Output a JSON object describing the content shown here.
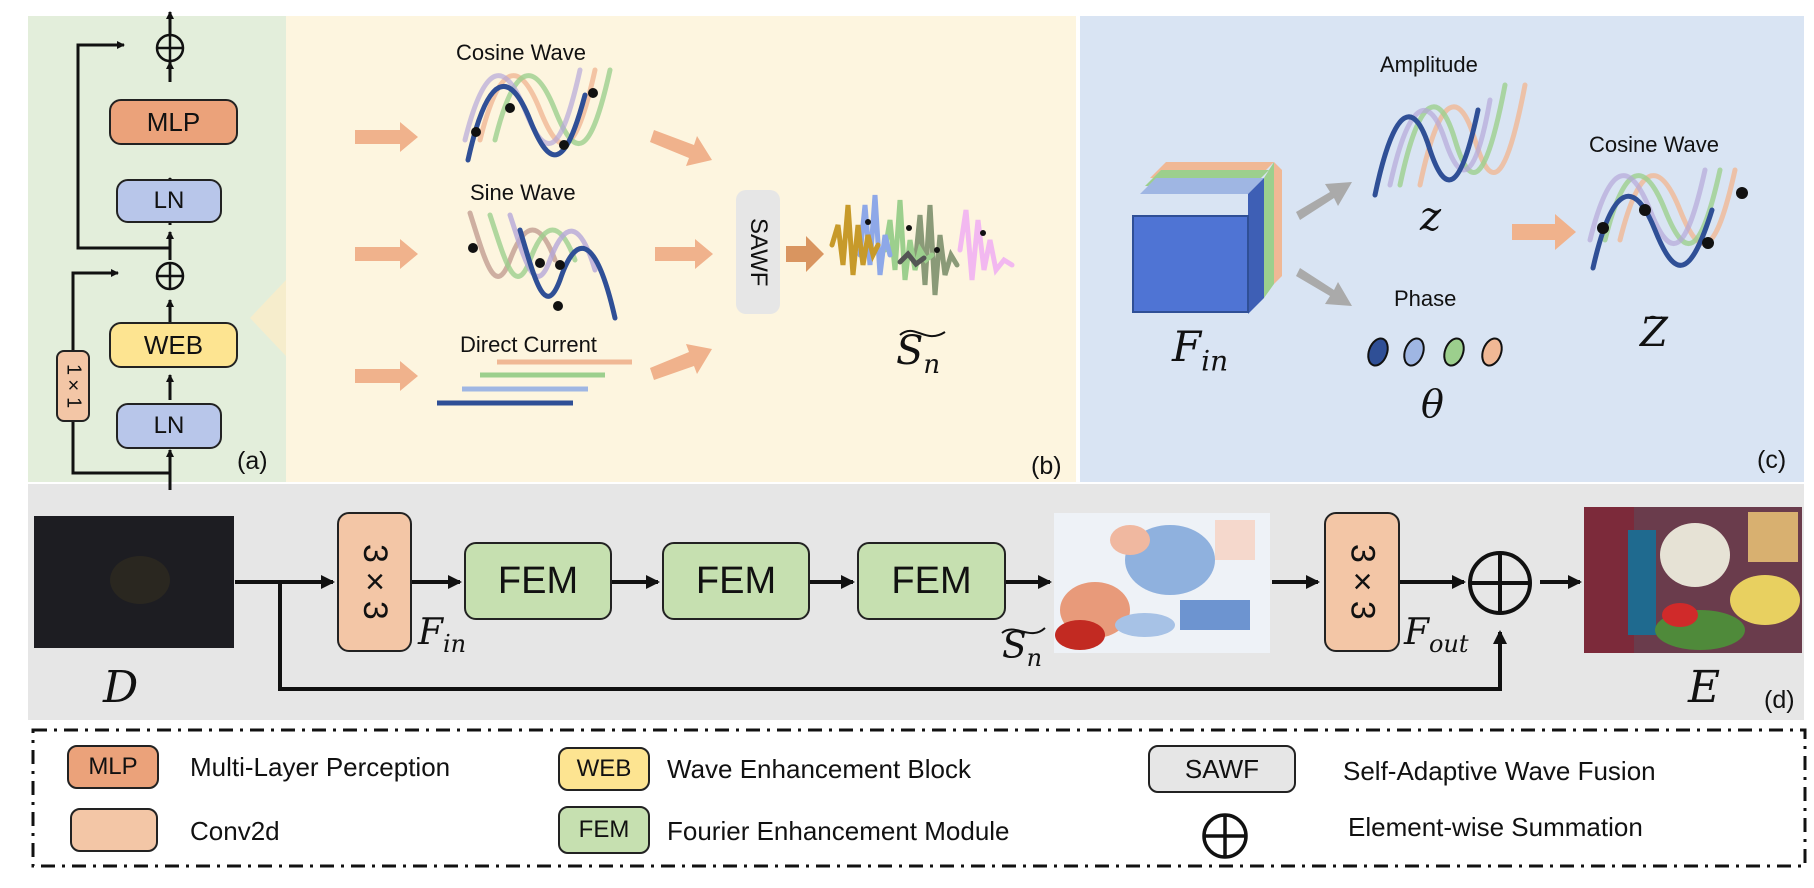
{
  "colors": {
    "panel_a_bg": "#e3eedb",
    "panel_b_bg": "#fdf5df",
    "panel_c_bg": "#d9e4f3",
    "panel_d_bg": "#e6e6e6",
    "mlp": "#eba27a",
    "ln": "#b8c6ea",
    "web": "#fde491",
    "conv": "#f3c6a6",
    "fem": "#c6e0b0",
    "sawf": "#e6e6e6",
    "arrow_orange": "#f0b28c",
    "arrow_gray": "#aaaaaa",
    "wave_blue": "#2f4f96",
    "wave_green": "#9ccf8d",
    "wave_orange": "#f0b895",
    "wave_purple": "#b5a8d8"
  },
  "panel_a": {
    "label": "(a)",
    "mlp": "MLP",
    "ln_top": "LN",
    "web": "WEB",
    "ln_bottom": "LN",
    "conv1x1": "1×1"
  },
  "panel_b": {
    "label": "(b)",
    "cosine": "Cosine Wave",
    "sine": "Sine Wave",
    "dc": "Direct Current",
    "sawf": "SAWF",
    "output": "S_n"
  },
  "panel_c": {
    "label": "(c)",
    "amplitude": "Amplitude",
    "phase": "Phase",
    "cosine": "Cosine Wave",
    "f_in": "F",
    "f_in_sub": "in",
    "z": "z",
    "theta": "θ",
    "z_tilde": "Z"
  },
  "panel_d": {
    "label": "(d)",
    "conv1": "3×3",
    "fem1": "FEM",
    "fem2": "FEM",
    "fem3": "FEM",
    "conv2": "3×3",
    "d_var": "D",
    "e_var": "E",
    "f_in": "F",
    "f_in_sub": "in",
    "f_out": "F",
    "f_out_sub": "out",
    "s_n": "S",
    "s_n_sub": "n",
    "sum": "⊕"
  },
  "legend": {
    "items": [
      {
        "key": "MLP",
        "text": "Multi-Layer Perception"
      },
      {
        "key": "",
        "text": "Conv2d"
      },
      {
        "key": "WEB",
        "text": "Wave Enhancement Block"
      },
      {
        "key": "FEM",
        "text": "Fourier Enhancement Module"
      },
      {
        "key": "SAWF",
        "text": "Self-Adaptive Wave Fusion"
      },
      {
        "key": "⊕",
        "text": "Element-wise Summation"
      }
    ]
  }
}
